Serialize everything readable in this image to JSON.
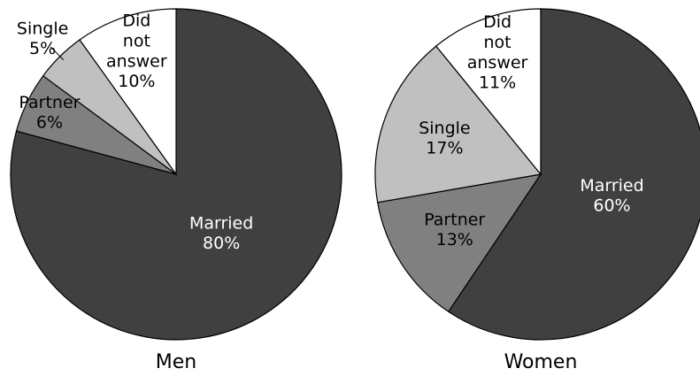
{
  "chart_data": [
    {
      "type": "pie",
      "title": "Men",
      "categories": [
        "Married",
        "Partner",
        "Single",
        "Did not answer"
      ],
      "values": [
        80,
        6,
        5,
        10
      ],
      "value_labels": [
        "80%",
        "6%",
        "5%",
        "10%"
      ],
      "colors": [
        "#404040",
        "#808080",
        "#c0c0c0",
        "#ffffff"
      ]
    },
    {
      "type": "pie",
      "title": "Women",
      "categories": [
        "Married",
        "Partner",
        "Single",
        "Did not answer"
      ],
      "values": [
        60,
        13,
        17,
        11
      ],
      "value_labels": [
        "60%",
        "13%",
        "17%",
        "11%"
      ],
      "colors": [
        "#404040",
        "#808080",
        "#c0c0c0",
        "#ffffff"
      ]
    }
  ]
}
